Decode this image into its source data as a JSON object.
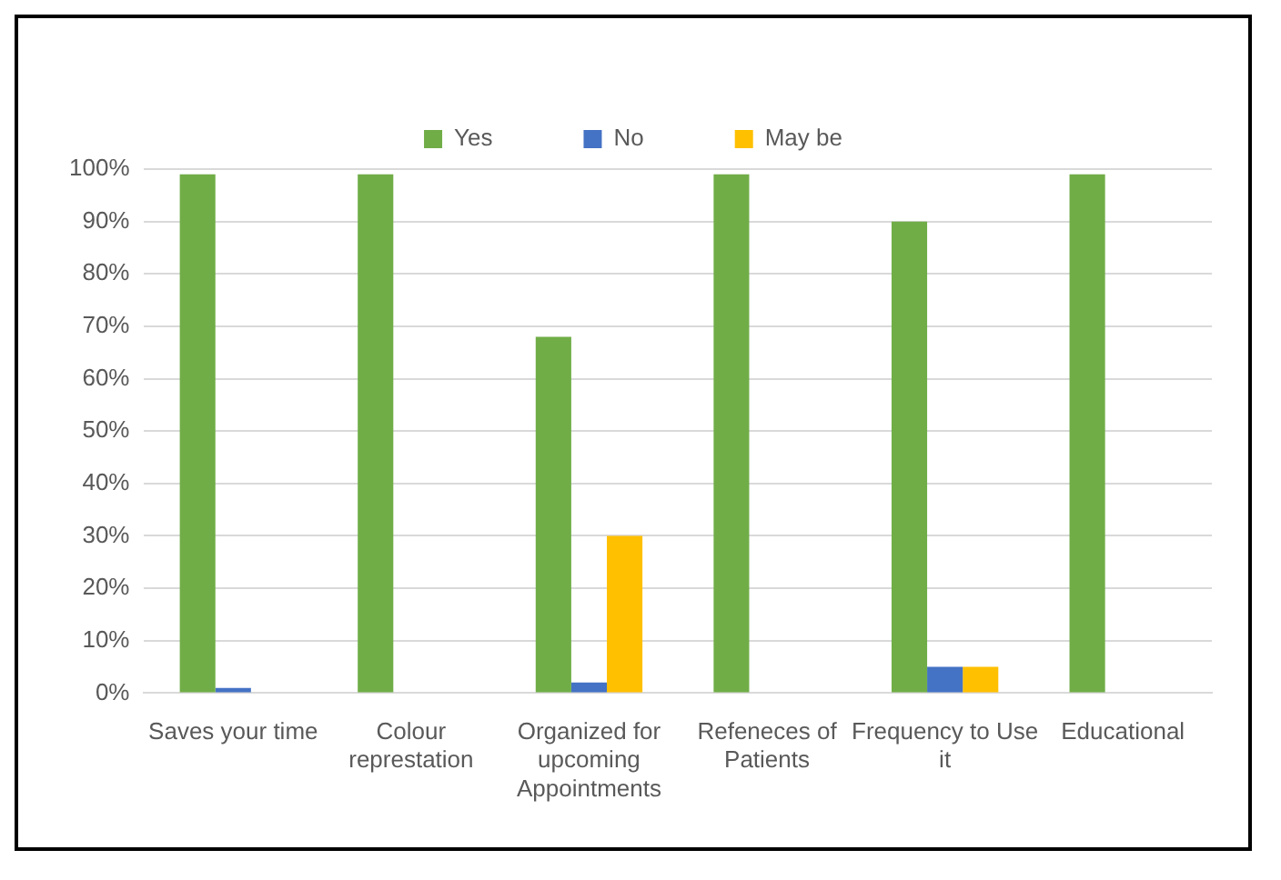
{
  "chart_data": {
    "type": "bar",
    "categories": [
      "Saves your time",
      "Colour represtation",
      "Organized for upcoming Appointments",
      "Refeneces of Patients",
      "Frequency to Use it",
      "Educational"
    ],
    "series": [
      {
        "name": "Yes",
        "color": "#70ad47",
        "values": [
          99,
          99,
          68,
          99,
          90,
          99
        ]
      },
      {
        "name": "No",
        "color": "#4472c4",
        "values": [
          1,
          null,
          2,
          null,
          5,
          null
        ]
      },
      {
        "name": "May be",
        "color": "#ffc000",
        "values": [
          null,
          null,
          30,
          null,
          5,
          null
        ]
      }
    ],
    "ylim": [
      0,
      100
    ],
    "yticks": [
      {
        "value": 0,
        "label": "0%"
      },
      {
        "value": 10,
        "label": "10%"
      },
      {
        "value": 20,
        "label": "20%"
      },
      {
        "value": 30,
        "label": "30%"
      },
      {
        "value": 40,
        "label": "40%"
      },
      {
        "value": 50,
        "label": "50%"
      },
      {
        "value": 60,
        "label": "60%"
      },
      {
        "value": 70,
        "label": "70%"
      },
      {
        "value": 80,
        "label": "80%"
      },
      {
        "value": 90,
        "label": "90%"
      },
      {
        "value": 100,
        "label": "100%"
      }
    ],
    "grid": "y",
    "legend": "top"
  }
}
